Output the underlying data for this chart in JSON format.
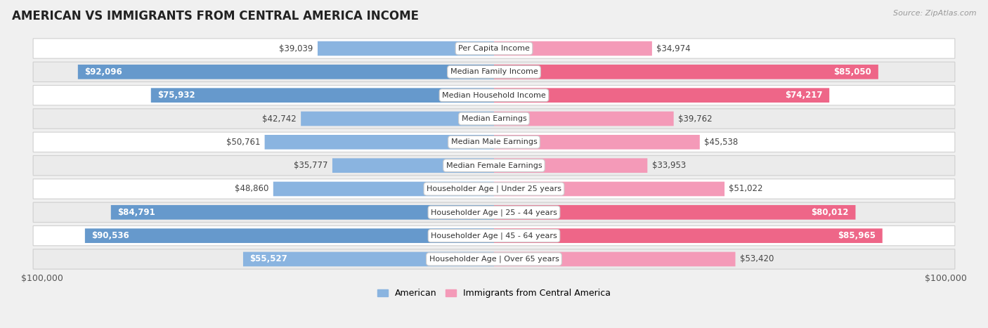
{
  "title": "AMERICAN VS IMMIGRANTS FROM CENTRAL AMERICA INCOME",
  "source": "Source: ZipAtlas.com",
  "categories": [
    "Per Capita Income",
    "Median Family Income",
    "Median Household Income",
    "Median Earnings",
    "Median Male Earnings",
    "Median Female Earnings",
    "Householder Age | Under 25 years",
    "Householder Age | 25 - 44 years",
    "Householder Age | 45 - 64 years",
    "Householder Age | Over 65 years"
  ],
  "american_values": [
    39039,
    92096,
    75932,
    42742,
    50761,
    35777,
    48860,
    84791,
    90536,
    55527
  ],
  "immigrant_values": [
    34974,
    85050,
    74217,
    39762,
    45538,
    33953,
    51022,
    80012,
    85965,
    53420
  ],
  "american_color": "#8ab4e0",
  "immigrant_color": "#f49ab8",
  "american_color_strong": "#6699cc",
  "immigrant_color_strong": "#ee6688",
  "max_value": 100000,
  "bar_height": 0.62,
  "bg_color": "#f0f0f0",
  "row_bg_even": "#ffffff",
  "row_bg_odd": "#ebebeb",
  "xlabel_left": "$100,000",
  "xlabel_right": "$100,000",
  "legend_american": "American",
  "legend_immigrant": "Immigrants from Central America",
  "title_fontsize": 12,
  "source_fontsize": 8,
  "label_fontsize": 9,
  "value_fontsize": 8.5,
  "category_fontsize": 8,
  "inside_threshold": 0.55
}
